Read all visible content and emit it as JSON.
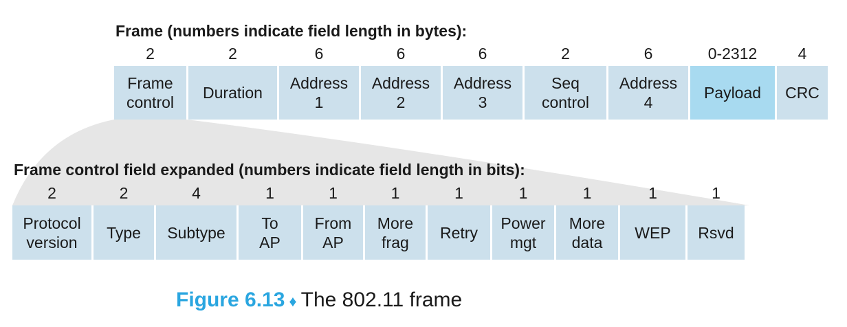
{
  "frame": {
    "title": "Frame (numbers indicate field length in bytes):",
    "fields": [
      {
        "length": "2",
        "label": "Frame\ncontrol",
        "name": "frame-control"
      },
      {
        "length": "2",
        "label": "Duration",
        "name": "duration"
      },
      {
        "length": "6",
        "label": "Address\n1",
        "name": "address-1"
      },
      {
        "length": "6",
        "label": "Address\n2",
        "name": "address-2"
      },
      {
        "length": "6",
        "label": "Address\n3",
        "name": "address-3"
      },
      {
        "length": "2",
        "label": "Seq\ncontrol",
        "name": "seq-control"
      },
      {
        "length": "6",
        "label": "Address\n4",
        "name": "address-4"
      },
      {
        "length": "0-2312",
        "label": "Payload",
        "name": "payload",
        "highlight": true
      },
      {
        "length": "4",
        "label": "CRC",
        "name": "crc"
      }
    ]
  },
  "frame_control": {
    "title": "Frame control field expanded (numbers indicate field length in bits):",
    "fields": [
      {
        "length": "2",
        "label": "Protocol\nversion",
        "name": "protocol-version"
      },
      {
        "length": "2",
        "label": "Type",
        "name": "type"
      },
      {
        "length": "4",
        "label": "Subtype",
        "name": "subtype"
      },
      {
        "length": "1",
        "label": "To\nAP",
        "name": "to-ap"
      },
      {
        "length": "1",
        "label": "From\nAP",
        "name": "from-ap"
      },
      {
        "length": "1",
        "label": "More\nfrag",
        "name": "more-frag"
      },
      {
        "length": "1",
        "label": "Retry",
        "name": "retry"
      },
      {
        "length": "1",
        "label": "Power\nmgt",
        "name": "power-mgt"
      },
      {
        "length": "1",
        "label": "More\ndata",
        "name": "more-data"
      },
      {
        "length": "1",
        "label": "WEP",
        "name": "wep"
      },
      {
        "length": "1",
        "label": "Rsvd",
        "name": "rsvd"
      }
    ]
  },
  "caption": {
    "number": "Figure 6.13",
    "separator": "♦",
    "text": "The 802.11 frame"
  },
  "colors": {
    "field_fill": "#cce0ec",
    "payload_fill": "#a8daf0",
    "fan_fill": "#e6e6e6",
    "caption_accent": "#2aa6e0"
  }
}
